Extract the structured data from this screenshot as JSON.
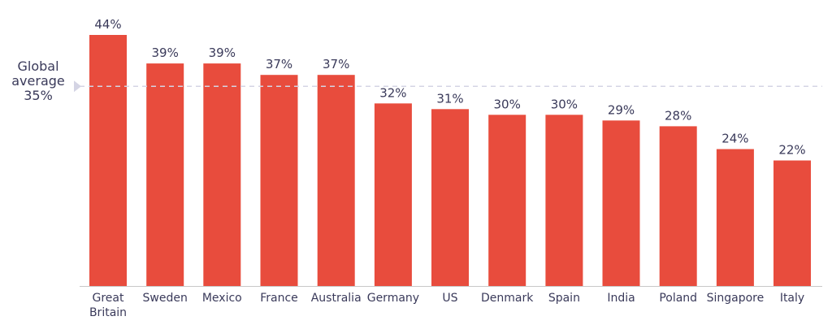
{
  "chart_data": {
    "type": "bar",
    "categories": [
      [
        "Great",
        "Britain"
      ],
      [
        "Sweden"
      ],
      [
        "Mexico"
      ],
      [
        "France"
      ],
      [
        "Australia"
      ],
      [
        "Germany"
      ],
      [
        "US"
      ],
      [
        "Denmark"
      ],
      [
        "Spain"
      ],
      [
        "India"
      ],
      [
        "Poland"
      ],
      [
        "Singapore"
      ],
      [
        "Italy"
      ]
    ],
    "values": [
      44,
      39,
      39,
      37,
      37,
      32,
      31,
      30,
      30,
      29,
      28,
      24,
      22
    ],
    "value_labels": [
      "44%",
      "39%",
      "39%",
      "37%",
      "37%",
      "32%",
      "31%",
      "30%",
      "30%",
      "29%",
      "28%",
      "24%",
      "22%"
    ],
    "reference_line": {
      "value": 35,
      "label": [
        "Global",
        "average",
        "35%"
      ],
      "style": "dashed"
    },
    "ylim": [
      0,
      44
    ],
    "grid": false,
    "bar_color": "#e84c3d",
    "reference_color": "#d4d4e4",
    "axis_color": "#c8c8c8",
    "text_color": "#3a3a5a"
  }
}
